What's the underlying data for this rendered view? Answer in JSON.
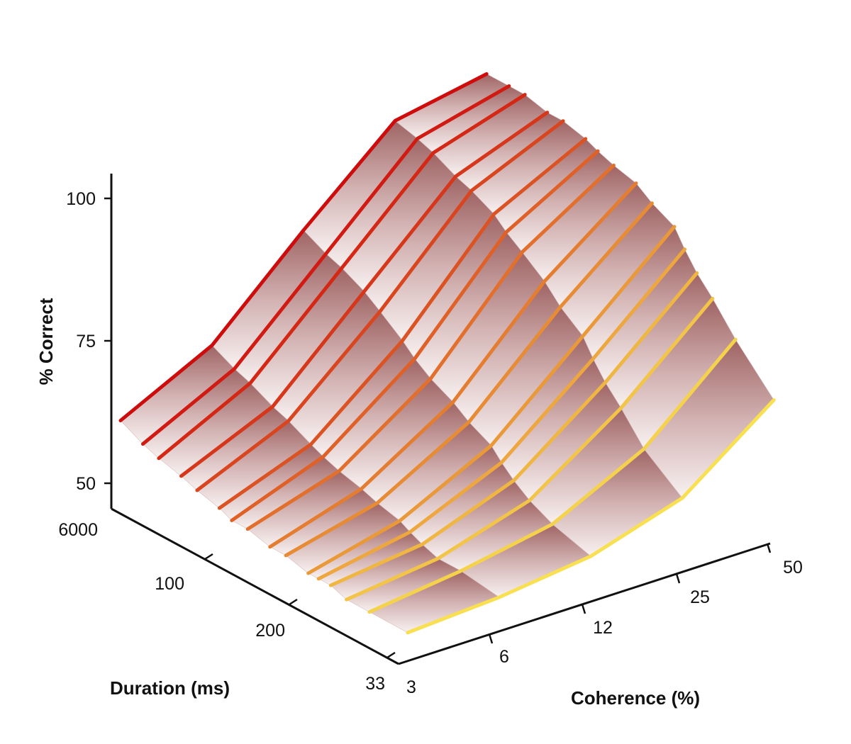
{
  "chart_data": {
    "type": "surface",
    "title": "",
    "zlabel": "% Correct",
    "xlabel": "Coherence (%)",
    "ylabel": "Duration (ms)",
    "zlim": [
      45,
      105
    ],
    "z_ticks": [
      50,
      75,
      100
    ],
    "coherence_ticks": [
      "3",
      "6",
      "12",
      "25",
      "50"
    ],
    "duration_ticks": [
      "33",
      "200",
      "100",
      "6000"
    ],
    "coherence_range_log2": [
      1.58,
      5.64
    ],
    "duration_range_log": [
      1.52,
      3.78
    ],
    "coherence_values": [
      3.2,
      6.4,
      12.8,
      25.6,
      51.2
    ],
    "duration_values": [
      33,
      66,
      100,
      133,
      166,
      200,
      300,
      400,
      600,
      800,
      1000,
      1500,
      2000,
      3000,
      4000,
      6000
    ],
    "series": [
      {
        "name": "33 ms",
        "values": [
          50,
          51,
          53,
          58,
          70
        ]
      },
      {
        "name": "66 ms",
        "values": [
          50,
          52,
          55,
          63,
          77
        ]
      },
      {
        "name": "100 ms",
        "values": [
          50,
          52,
          57,
          68,
          82
        ]
      },
      {
        "name": "133 ms",
        "values": [
          51,
          53,
          59,
          71,
          85
        ]
      },
      {
        "name": "166 ms",
        "values": [
          51,
          54,
          61,
          74,
          88
        ]
      },
      {
        "name": "200 ms",
        "values": [
          51,
          55,
          63,
          77,
          91
        ]
      },
      {
        "name": "300 ms",
        "values": [
          52,
          56,
          65,
          80,
          93
        ]
      },
      {
        "name": "400 ms",
        "values": [
          52,
          57,
          67,
          83,
          95
        ]
      },
      {
        "name": "600 ms",
        "values": [
          53,
          58,
          69,
          86,
          96
        ]
      },
      {
        "name": "800 ms",
        "values": [
          53,
          59,
          71,
          88,
          97
        ]
      },
      {
        "name": "1000 ms",
        "values": [
          54,
          60,
          73,
          90,
          98
        ]
      },
      {
        "name": "1500 ms",
        "values": [
          55,
          62,
          76,
          92,
          99
        ]
      },
      {
        "name": "2000 ms",
        "values": [
          56,
          63,
          78,
          93,
          99
        ]
      },
      {
        "name": "3000 ms",
        "values": [
          57,
          65,
          80,
          95,
          100
        ]
      },
      {
        "name": "4000 ms",
        "values": [
          58,
          66,
          81,
          96,
          100
        ]
      },
      {
        "name": "6000 ms",
        "values": [
          60,
          68,
          83,
          97,
          100
        ]
      }
    ]
  }
}
